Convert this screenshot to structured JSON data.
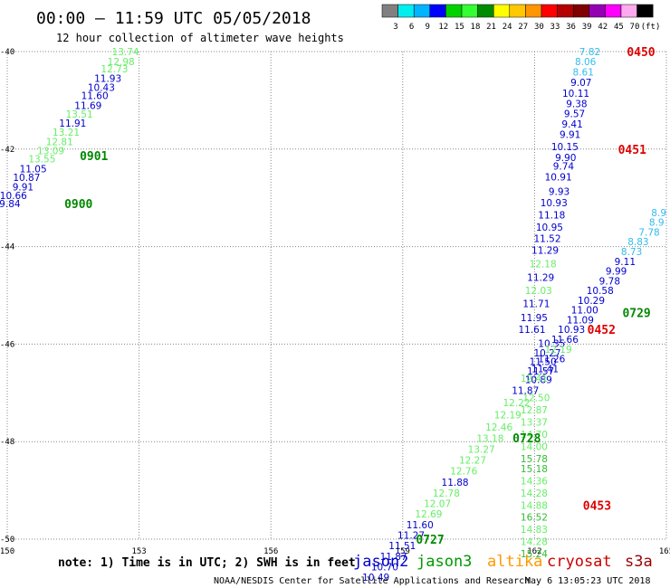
{
  "chart_data": {
    "type": "scatter",
    "title": "00:00 – 11:59 UTC 05/05/2018",
    "subtitle": "12 hour collection of altimeter wave heights",
    "note": "note: 1) Time is in UTC; 2) SWH is in feet",
    "credit": "NOAA/NESDIS Center for Satellite Applications and Research",
    "timestamp": "May  6 13:05:23 UTC 2018",
    "xlim": [
      150,
      165
    ],
    "ylim": [
      -50,
      -40
    ],
    "grid": true,
    "x_ticks": [
      {
        "v": 150,
        "label": "150"
      },
      {
        "v": 153,
        "label": "153"
      },
      {
        "v": 156,
        "label": "156"
      },
      {
        "v": 159,
        "label": "159"
      },
      {
        "v": 162,
        "label": "162"
      },
      {
        "v": 165,
        "label": "165"
      }
    ],
    "y_ticks": [
      {
        "v": -40,
        "label": "-40"
      },
      {
        "v": -42,
        "label": "-42"
      },
      {
        "v": -44,
        "label": "-44"
      },
      {
        "v": -46,
        "label": "-46"
      },
      {
        "v": -48,
        "label": "-48"
      },
      {
        "v": -50,
        "label": "-50"
      }
    ],
    "colorbar": {
      "labels": [
        "3",
        "6",
        "9",
        "12",
        "15",
        "18",
        "21",
        "24",
        "27",
        "30",
        "33",
        "36",
        "39",
        "42",
        "45",
        "70",
        "(ft)"
      ],
      "colors": [
        "#808080",
        "#00eeee",
        "#00b4ff",
        "#0000ff",
        "#00d200",
        "#33ff33",
        "#008c00",
        "#ffff00",
        "#ffc800",
        "#ff9600",
        "#ff0000",
        "#b40000",
        "#800000",
        "#9600b4",
        "#ff00ff",
        "#ffaaee",
        "#000000"
      ]
    },
    "satellites": [
      {
        "name": "jason2",
        "color": "#0000cc"
      },
      {
        "name": "jason3",
        "color": "#009900"
      },
      {
        "name": "altika",
        "color": "#ff9900"
      },
      {
        "name": "cryosat",
        "color": "#cc0000"
      },
      {
        "name": "s3a",
        "color": "#990000"
      }
    ],
    "series": [
      {
        "pass": "0900-0901",
        "points": [
          {
            "x": 153.0,
            "y": -40.0,
            "v": "13.74",
            "c": "#66ee66"
          },
          {
            "x": 152.9,
            "y": -40.2,
            "v": "12.98",
            "c": "#66ee66"
          },
          {
            "x": 152.75,
            "y": -40.35,
            "v": "12.73",
            "c": "#66ee66"
          },
          {
            "x": 152.6,
            "y": -40.55,
            "v": "11.93",
            "c": "#0000cc"
          },
          {
            "x": 152.45,
            "y": -40.73,
            "v": "10.43",
            "c": "#0000cc"
          },
          {
            "x": 152.3,
            "y": -40.9,
            "v": "11.60",
            "c": "#0000cc"
          },
          {
            "x": 152.15,
            "y": -41.1,
            "v": "11.69",
            "c": "#0000cc"
          },
          {
            "x": 151.95,
            "y": -41.28,
            "v": "13.51",
            "c": "#66ee66"
          },
          {
            "x": 151.8,
            "y": -41.47,
            "v": "11.91",
            "c": "#0000cc"
          },
          {
            "x": 151.65,
            "y": -41.65,
            "v": "13.21",
            "c": "#66ee66"
          },
          {
            "x": 151.5,
            "y": -41.85,
            "v": "12.81",
            "c": "#66ee66"
          },
          {
            "x": 151.3,
            "y": -42.03,
            "v": "13.09",
            "c": "#66ee66"
          },
          {
            "x": 151.1,
            "y": -42.2,
            "v": "13.55",
            "c": "#66ee66"
          },
          {
            "x": 150.9,
            "y": -42.4,
            "v": "11.05",
            "c": "#0000cc"
          },
          {
            "x": 150.75,
            "y": -42.58,
            "v": "10.87",
            "c": "#0000cc"
          },
          {
            "x": 150.6,
            "y": -42.77,
            "v": "9.91",
            "c": "#0000cc"
          },
          {
            "x": 150.45,
            "y": -42.95,
            "v": "10.66",
            "c": "#0000cc"
          },
          {
            "x": 150.3,
            "y": -43.12,
            "v": "9.84",
            "c": "#0000cc"
          }
        ]
      },
      {
        "pass": "0450-0451",
        "points": [
          {
            "x": 163.5,
            "y": -40.0,
            "v": "7.82",
            "c": "#33bbee"
          },
          {
            "x": 163.4,
            "y": -40.2,
            "v": "8.06",
            "c": "#33bbee"
          },
          {
            "x": 163.35,
            "y": -40.42,
            "v": "8.61",
            "c": "#33bbee"
          },
          {
            "x": 163.3,
            "y": -40.63,
            "v": "9.07",
            "c": "#0000cc"
          },
          {
            "x": 163.25,
            "y": -40.85,
            "v": "10.11",
            "c": "#0000cc"
          },
          {
            "x": 163.2,
            "y": -41.07,
            "v": "9.38",
            "c": "#0000cc"
          },
          {
            "x": 163.15,
            "y": -41.27,
            "v": "9.57",
            "c": "#0000cc"
          },
          {
            "x": 163.1,
            "y": -41.48,
            "v": "9.41",
            "c": "#0000cc"
          },
          {
            "x": 163.05,
            "y": -41.7,
            "v": "9.91",
            "c": "#0000cc"
          },
          {
            "x": 163.0,
            "y": -41.95,
            "v": "10.15",
            "c": "#0000cc"
          },
          {
            "x": 162.95,
            "y": -42.17,
            "v": "9.90",
            "c": "#0000cc"
          },
          {
            "x": 162.9,
            "y": -42.35,
            "v": "9.74",
            "c": "#0000cc"
          },
          {
            "x": 162.85,
            "y": -42.57,
            "v": "10.91",
            "c": "#0000cc"
          },
          {
            "x": 162.8,
            "y": -42.87,
            "v": "9.93",
            "c": "#0000cc"
          },
          {
            "x": 162.75,
            "y": -43.1,
            "v": "10.93",
            "c": "#0000cc"
          },
          {
            "x": 162.7,
            "y": -43.35,
            "v": "11.18",
            "c": "#0000cc"
          },
          {
            "x": 162.65,
            "y": -43.6,
            "v": "10.95",
            "c": "#0000cc"
          },
          {
            "x": 162.6,
            "y": -43.83,
            "v": "11.52",
            "c": "#0000cc"
          },
          {
            "x": 162.55,
            "y": -44.07,
            "v": "11.29",
            "c": "#0000cc"
          },
          {
            "x": 162.5,
            "y": -44.35,
            "v": "12.18",
            "c": "#66ee66"
          },
          {
            "x": 162.45,
            "y": -44.63,
            "v": "11.29",
            "c": "#0000cc"
          },
          {
            "x": 162.4,
            "y": -44.9,
            "v": "12.03",
            "c": "#66ee66"
          },
          {
            "x": 162.35,
            "y": -45.17,
            "v": "11.71",
            "c": "#0000cc"
          },
          {
            "x": 162.3,
            "y": -45.45,
            "v": "11.95",
            "c": "#0000cc"
          },
          {
            "x": 162.25,
            "y": -45.7,
            "v": "11.61",
            "c": "#0000cc"
          }
        ]
      },
      {
        "pass": "0452-0453",
        "points": [
          {
            "x": 162.7,
            "y": -45.98,
            "v": "10.35",
            "c": "#0000cc"
          },
          {
            "x": 162.6,
            "y": -46.18,
            "v": "10.27",
            "c": "#0000cc"
          },
          {
            "x": 162.5,
            "y": -46.35,
            "v": "11.50",
            "c": "#0000cc"
          },
          {
            "x": 162.45,
            "y": -46.55,
            "v": "11.57",
            "c": "#0000cc"
          },
          {
            "x": 162.4,
            "y": -46.73,
            "v": "10.89",
            "c": "#0000cc"
          },
          {
            "x": 162.35,
            "y": -47.1,
            "v": "12.50",
            "c": "#66ee66"
          },
          {
            "x": 162.3,
            "y": -47.35,
            "v": "12.87",
            "c": "#66ee66"
          },
          {
            "x": 162.3,
            "y": -47.6,
            "v": "13.37",
            "c": "#66ee66"
          },
          {
            "x": 162.3,
            "y": -47.85,
            "v": "14.70",
            "c": "#66ee66"
          },
          {
            "x": 162.3,
            "y": -48.1,
            "v": "14.00",
            "c": "#66ee66"
          },
          {
            "x": 162.3,
            "y": -48.35,
            "v": "15.78",
            "c": "#33bb33"
          },
          {
            "x": 162.3,
            "y": -48.55,
            "v": "15.18",
            "c": "#33bb33"
          },
          {
            "x": 162.3,
            "y": -48.8,
            "v": "14.36",
            "c": "#66ee66"
          },
          {
            "x": 162.3,
            "y": -49.05,
            "v": "14.28",
            "c": "#66ee66"
          },
          {
            "x": 162.3,
            "y": -49.3,
            "v": "14.88",
            "c": "#66ee66"
          },
          {
            "x": 162.3,
            "y": -49.55,
            "v": "16.52",
            "c": "#33bb33"
          },
          {
            "x": 162.3,
            "y": -49.8,
            "v": "14.83",
            "c": "#66ee66"
          },
          {
            "x": 162.3,
            "y": -50.05,
            "v": "14.28",
            "c": "#66ee66"
          },
          {
            "x": 162.3,
            "y": -50.3,
            "v": "15.24",
            "c": "#33bb33"
          }
        ]
      },
      {
        "pass": "0727-0728-0729",
        "points": [
          {
            "x": 165.0,
            "y": -43.3,
            "v": "8.9",
            "c": "#33bbee"
          },
          {
            "x": 164.95,
            "y": -43.5,
            "v": "8.9",
            "c": "#33bbee"
          },
          {
            "x": 164.85,
            "y": -43.7,
            "v": "7.78",
            "c": "#33bbee"
          },
          {
            "x": 164.6,
            "y": -43.9,
            "v": "8.83",
            "c": "#33bbee"
          },
          {
            "x": 164.45,
            "y": -44.1,
            "v": "8.73",
            "c": "#33bbee"
          },
          {
            "x": 164.3,
            "y": -44.3,
            "v": "9.11",
            "c": "#0000cc"
          },
          {
            "x": 164.1,
            "y": -44.5,
            "v": "9.99",
            "c": "#0000cc"
          },
          {
            "x": 163.95,
            "y": -44.7,
            "v": "9.78",
            "c": "#0000cc"
          },
          {
            "x": 163.8,
            "y": -44.9,
            "v": "10.58",
            "c": "#0000cc"
          },
          {
            "x": 163.6,
            "y": -45.1,
            "v": "10.29",
            "c": "#0000cc"
          },
          {
            "x": 163.45,
            "y": -45.3,
            "v": "11.00",
            "c": "#0000cc"
          },
          {
            "x": 163.35,
            "y": -45.5,
            "v": "11.09",
            "c": "#0000cc"
          },
          {
            "x": 163.15,
            "y": -45.7,
            "v": "10.93",
            "c": "#0000cc"
          },
          {
            "x": 163.0,
            "y": -45.9,
            "v": "11.66",
            "c": "#0000cc"
          },
          {
            "x": 162.85,
            "y": -46.1,
            "v": "12.19",
            "c": "#66ee66"
          },
          {
            "x": 162.7,
            "y": -46.3,
            "v": "11.26",
            "c": "#0000cc"
          },
          {
            "x": 162.55,
            "y": -46.5,
            "v": "11.41",
            "c": "#0000cc"
          },
          {
            "x": 162.3,
            "y": -46.7,
            "v": "12.41",
            "c": "#66ee66"
          },
          {
            "x": 162.1,
            "y": -46.95,
            "v": "11.87",
            "c": "#0000cc"
          },
          {
            "x": 161.9,
            "y": -47.2,
            "v": "12.22",
            "c": "#66ee66"
          },
          {
            "x": 161.7,
            "y": -47.45,
            "v": "12.19",
            "c": "#66ee66"
          },
          {
            "x": 161.5,
            "y": -47.7,
            "v": "12.46",
            "c": "#66ee66"
          },
          {
            "x": 161.3,
            "y": -47.93,
            "v": "13.18",
            "c": "#66ee66"
          },
          {
            "x": 161.1,
            "y": -48.15,
            "v": "13.27",
            "c": "#66ee66"
          },
          {
            "x": 160.9,
            "y": -48.38,
            "v": "12.27",
            "c": "#66ee66"
          },
          {
            "x": 160.7,
            "y": -48.6,
            "v": "12.76",
            "c": "#66ee66"
          },
          {
            "x": 160.5,
            "y": -48.83,
            "v": "11.88",
            "c": "#0000cc"
          },
          {
            "x": 160.3,
            "y": -49.05,
            "v": "12.78",
            "c": "#66ee66"
          },
          {
            "x": 160.1,
            "y": -49.27,
            "v": "12.07",
            "c": "#66ee66"
          },
          {
            "x": 159.9,
            "y": -49.48,
            "v": "12.69",
            "c": "#66ee66"
          },
          {
            "x": 159.7,
            "y": -49.7,
            "v": "11.60",
            "c": "#0000cc"
          },
          {
            "x": 159.5,
            "y": -49.92,
            "v": "11.27",
            "c": "#0000cc"
          },
          {
            "x": 159.3,
            "y": -50.13,
            "v": "11.51",
            "c": "#0000cc"
          },
          {
            "x": 159.1,
            "y": -50.35,
            "v": "11.87",
            "c": "#0000cc"
          },
          {
            "x": 158.9,
            "y": -50.57,
            "v": "10.70",
            "c": "#0000cc"
          },
          {
            "x": 158.7,
            "y": -50.78,
            "v": "10.49",
            "c": "#0000cc"
          }
        ]
      }
    ],
    "time_labels": [
      {
        "x": 151.65,
        "y": -42.13,
        "text": "0901",
        "c": "#008800"
      },
      {
        "x": 151.3,
        "y": -43.12,
        "text": "0900",
        "c": "#008800"
      },
      {
        "x": 164.1,
        "y": -40.0,
        "text": "0450",
        "c": "#dd0000"
      },
      {
        "x": 163.9,
        "y": -42.0,
        "text": "0451",
        "c": "#dd0000"
      },
      {
        "x": 164.0,
        "y": -45.35,
        "text": "0729",
        "c": "#008800"
      },
      {
        "x": 163.2,
        "y": -45.7,
        "text": "0452",
        "c": "#dd0000"
      },
      {
        "x": 161.5,
        "y": -47.92,
        "text": "0728",
        "c": "#008800"
      },
      {
        "x": 159.3,
        "y": -50.0,
        "text": "0727",
        "c": "#008800"
      },
      {
        "x": 163.1,
        "y": -49.3,
        "text": "0453",
        "c": "#dd0000"
      }
    ]
  }
}
